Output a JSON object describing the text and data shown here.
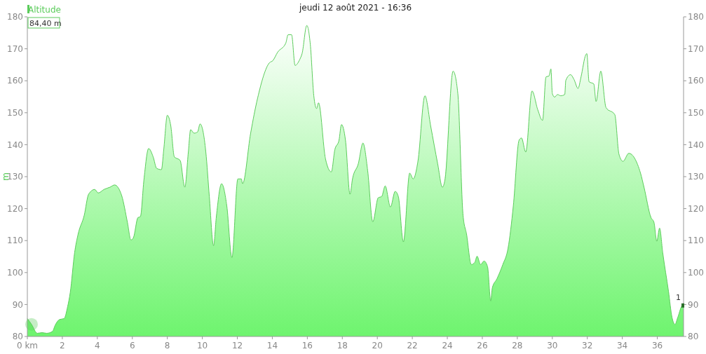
{
  "chart_data": {
    "type": "area",
    "title": "jeudi 12 août 2021 - 16:36",
    "ylabel": "m",
    "legend": "top left",
    "xlim": [
      0,
      37.5
    ],
    "xticks": [
      {
        "value": 0,
        "label": "0 km"
      },
      2,
      4,
      6,
      8,
      10,
      12,
      14,
      16,
      18,
      20,
      22,
      24,
      26,
      28,
      30,
      32,
      34,
      36
    ],
    "ylim": [
      80,
      180
    ],
    "yticks": [
      80,
      90,
      100,
      110,
      120,
      130,
      140,
      150,
      160,
      170,
      180
    ],
    "y2lim": [
      80,
      180
    ],
    "y2ticks": [
      80,
      90,
      100,
      110,
      120,
      130,
      140,
      150,
      160,
      170,
      180
    ],
    "grid": false,
    "annotations": [
      "84,40 m",
      {
        "text": "1",
        "x": 37.5,
        "y": 89.7
      }
    ],
    "series": [
      {
        "name": "Altitude",
        "color": "#5ccc5c",
        "x": [
          0,
          0.24,
          0.57,
          0.84,
          1.1,
          1.44,
          1.58,
          1.84,
          2.1,
          2.3,
          2.45,
          2.7,
          2.9,
          3.25,
          3.5,
          3.85,
          4.05,
          4.38,
          4.72,
          4.99,
          5.39,
          5.72,
          5.92,
          6.06,
          6.32,
          6.46,
          6.66,
          6.93,
          7.19,
          7.39,
          7.66,
          7.8,
          8.0,
          8.2,
          8.4,
          8.73,
          9.0,
          9.2,
          9.33,
          9.53,
          9.73,
          9.87,
          10.2,
          10.4,
          10.64,
          10.8,
          11.1,
          11.4,
          11.69,
          12.03,
          12.23,
          12.3,
          12.76,
          13.16,
          13.83,
          14.03,
          14.3,
          14.77,
          14.9,
          15.1,
          15.3,
          15.57,
          15.7,
          15.97,
          16.17,
          16.37,
          16.53,
          16.64,
          17.04,
          17.37,
          17.57,
          17.81,
          17.95,
          18.18,
          18.44,
          18.58,
          18.91,
          19.18,
          19.45,
          19.74,
          20.05,
          20.25,
          20.45,
          20.75,
          21.02,
          21.2,
          21.49,
          21.85,
          22.05,
          22.32,
          22.72,
          23.05,
          23.45,
          23.72,
          23.86,
          24.33,
          24.6,
          24.9,
          25.1,
          25.37,
          25.57,
          25.7,
          25.9,
          26.1,
          26.3,
          26.48,
          26.57,
          26.84,
          27.17,
          27.47,
          27.77,
          28.1,
          28.24,
          28.48,
          28.84,
          29.17,
          29.44,
          29.64,
          29.81,
          29.92,
          30.0,
          30.13,
          30.3,
          30.48,
          30.71,
          30.77,
          31.04,
          31.24,
          31.47,
          31.64,
          31.91,
          31.97,
          32.1,
          32.37,
          32.5,
          32.77,
          33.07,
          33.57,
          33.81,
          34.04,
          34.37,
          35.04,
          35.24,
          35.64,
          35.81,
          35.97,
          36.13,
          36.31,
          36.64,
          36.84,
          37.01,
          37.17,
          37.44,
          37.5
        ],
        "values": [
          85.6,
          83.8,
          81,
          81.2,
          81,
          81.6,
          83.4,
          85.3,
          85.6,
          89.3,
          93.7,
          106.2,
          112,
          117.9,
          124.5,
          126,
          124.9,
          126,
          126.7,
          127.4,
          124.1,
          115.7,
          110.2,
          110.9,
          117.2,
          117.5,
          128.9,
          138.8,
          136.2,
          132.6,
          132.2,
          138.8,
          149.2,
          145.8,
          136.2,
          135.1,
          126.7,
          137.7,
          144.7,
          143.6,
          144,
          146.5,
          137.7,
          123.8,
          108.4,
          117.5,
          127.8,
          120.8,
          104.7,
          129.3,
          129.3,
          127.8,
          143.6,
          154.6,
          165.6,
          166.3,
          168.9,
          171.8,
          174.4,
          174.4,
          164.8,
          166.7,
          168.5,
          177.3,
          171.4,
          155.3,
          151.3,
          153.1,
          135.5,
          131.5,
          138.4,
          141.4,
          146.3,
          141.4,
          124.5,
          129.3,
          134,
          140.5,
          131.8,
          115.9,
          123.4,
          123.8,
          127.1,
          120.5,
          125.4,
          123.8,
          109.6,
          131.1,
          129.3,
          134.8,
          155.3,
          145.8,
          134,
          126.7,
          128.9,
          163,
          156,
          117.9,
          112,
          102.5,
          103.2,
          105.1,
          102.5,
          103.6,
          101.8,
          91.1,
          95.2,
          98.1,
          102.5,
          107.6,
          120.8,
          141.4,
          142.1,
          137.7,
          156.8,
          150.9,
          147.6,
          161.2,
          161.5,
          163.7,
          156,
          154.9,
          155.7,
          155.3,
          155.7,
          160.1,
          161.9,
          160.4,
          157.6,
          161.2,
          168.1,
          168.5,
          159.7,
          159,
          153.5,
          163,
          151.6,
          149.4,
          137,
          134.8,
          137.3,
          131.1,
          126.7,
          117.2,
          115.7,
          109.8,
          113.9,
          106.2,
          94.1,
          86,
          83.8,
          86,
          89.7,
          89.7
        ]
      }
    ]
  }
}
